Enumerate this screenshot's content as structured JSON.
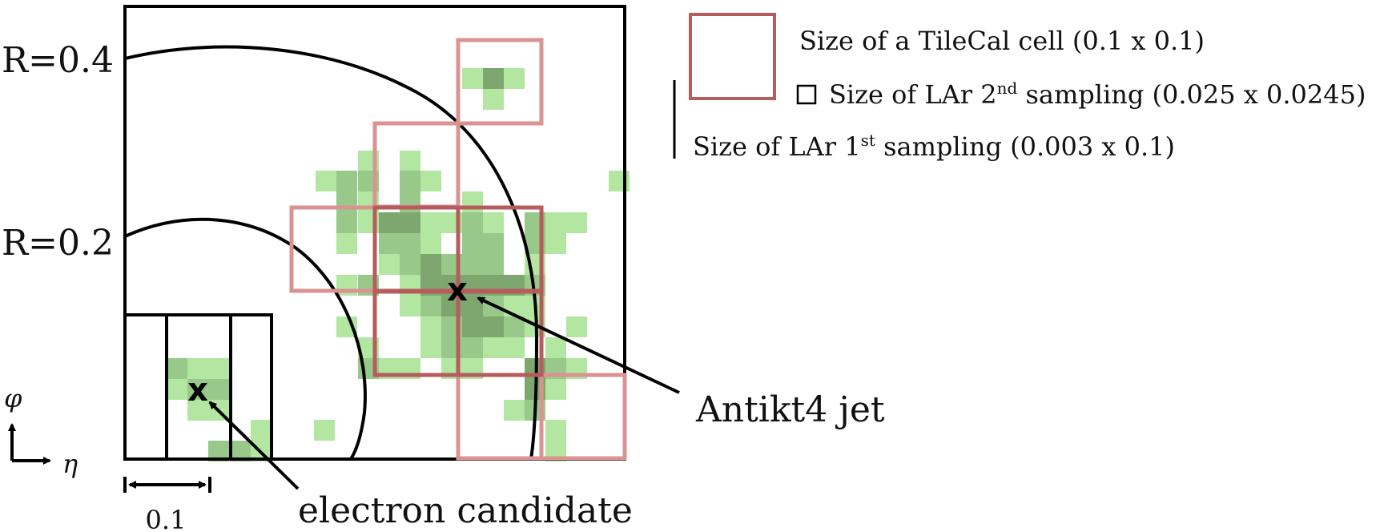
{
  "radius_labels": [
    "R=0.4",
    "R=0.2"
  ],
  "axis_labels": {
    "vertical": "φ",
    "horizontal": "η"
  },
  "scale_bar_label": "0.1",
  "callouts": {
    "jet": "Antikt4 jet",
    "electron": "electron candidate"
  },
  "markers": {
    "jet": "x",
    "electron": "x"
  },
  "legend": {
    "tilecal_cell": "Size of a TileCal cell (0.1 x 0.1)",
    "lar2": {
      "prefix": "Size of LAr 2",
      "sup": "nd",
      "suffix": " sampling (0.025 x 0.0245)"
    },
    "lar1": {
      "prefix": "Size of LAr 1",
      "sup": "st",
      "suffix": " sampling (0.003 x 0.1)"
    }
  },
  "colors": {
    "frame": "#000000",
    "tile_cell_light": "#d99393",
    "tile_cell_dark": "#b65c5c",
    "cell_light": "#b3e6a0",
    "cell_mid": "#99c98a",
    "cell_dark": "#7da76f"
  }
}
